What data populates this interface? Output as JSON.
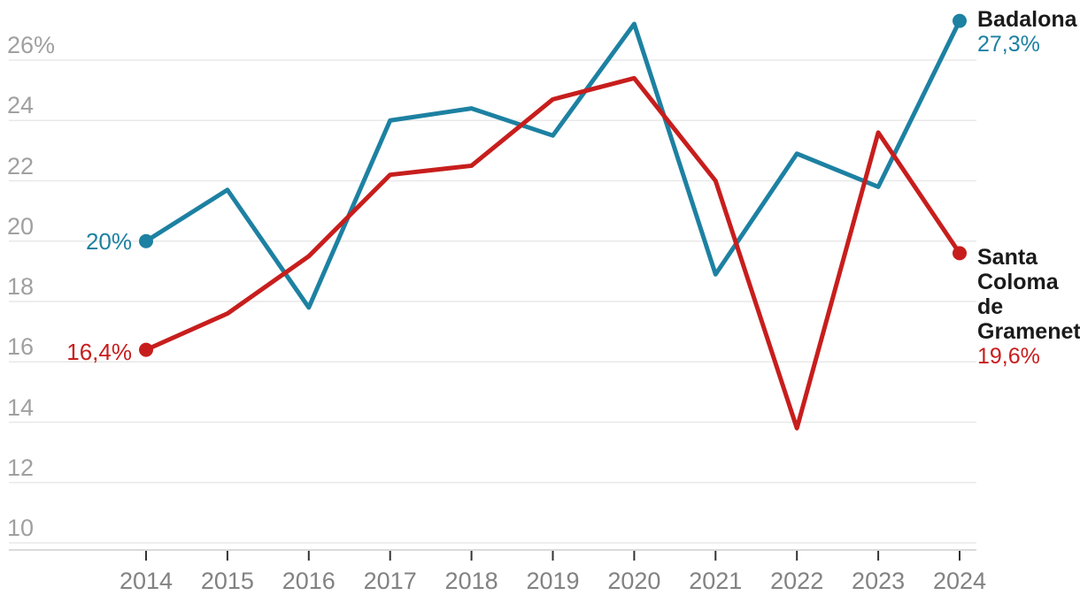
{
  "chart_data": {
    "type": "line",
    "title": "",
    "x": [
      "2014",
      "2015",
      "2016",
      "2017",
      "2018",
      "2019",
      "2020",
      "2021",
      "2022",
      "2023",
      "2024"
    ],
    "ylim": [
      10,
      27.5
    ],
    "yticks": [
      26,
      24,
      22,
      20,
      18,
      16,
      14,
      12,
      10
    ],
    "ytick_labels": [
      "26%",
      "24",
      "22",
      "20",
      "18",
      "16",
      "14",
      "12",
      "10"
    ],
    "grid": true,
    "legend_position": "line-end-labels",
    "series": [
      {
        "name": "Badalona",
        "color": "#1d81a2",
        "values": [
          20,
          21.7,
          17.8,
          24,
          24.4,
          23.5,
          27.2,
          18.9,
          22.9,
          21.8,
          27.3
        ],
        "first_point_label": "20%",
        "last_point_label": "27,3%"
      },
      {
        "name": "Santa Coloma de Gramenet",
        "color": "#c71e1d",
        "values": [
          16.4,
          17.6,
          19.5,
          22.2,
          22.5,
          24.7,
          25.4,
          22,
          13.8,
          23.6,
          19.6
        ],
        "first_point_label": "16,4%",
        "last_point_label": "19,6%"
      }
    ]
  },
  "palette": {
    "badalona_line": "#1d81a2",
    "santa_coloma_line": "#c71e1d",
    "gridline": "#e8e8e8",
    "axis_line": "#dadada",
    "tick_mark": "#333333",
    "ytick_text": "#a0a0a0",
    "xtick_text": "#828282",
    "series_name_text": "#1a1a1a"
  }
}
